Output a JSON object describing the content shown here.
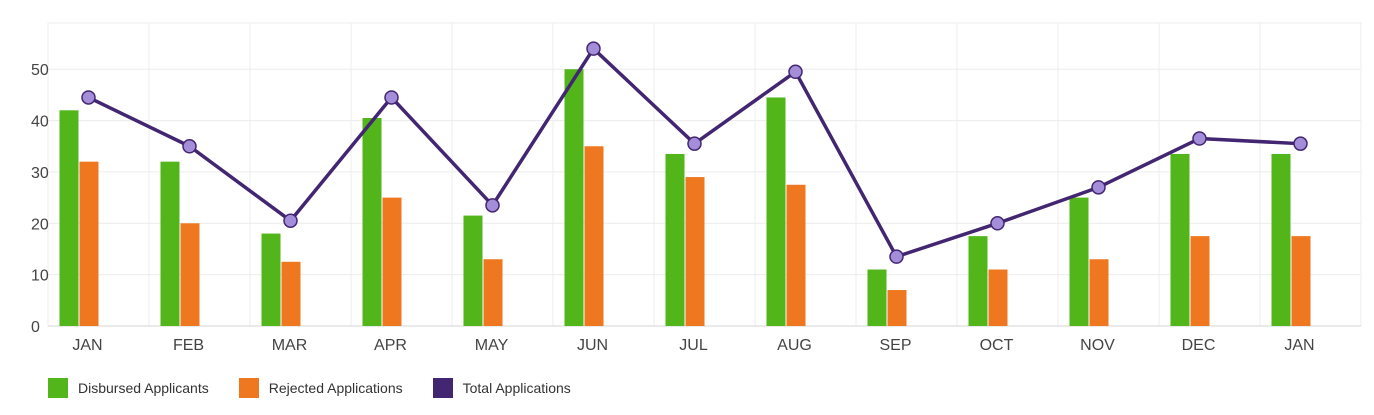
{
  "chart_data": {
    "type": "bar",
    "categories": [
      "JAN",
      "FEB",
      "MAR",
      "APR",
      "MAY",
      "JUN",
      "JUL",
      "AUG",
      "SEP",
      "OCT",
      "NOV",
      "DEC",
      "JAN"
    ],
    "series": [
      {
        "name": "Disbursed Applicants",
        "kind": "bar",
        "color": "#52b51a",
        "values": [
          42,
          32,
          18,
          40.5,
          21.5,
          50,
          33.5,
          44.5,
          11,
          17.5,
          25,
          33.5,
          33.5
        ]
      },
      {
        "name": "Rejected Applications",
        "kind": "bar",
        "color": "#ee7720",
        "values": [
          32,
          20,
          12.5,
          25,
          13,
          35,
          29,
          27.5,
          7,
          11,
          13,
          17.5,
          17.5
        ]
      },
      {
        "name": "Total Applications",
        "kind": "line",
        "color": "#432672",
        "marker_color": "#a58ed9",
        "values": [
          44.5,
          35,
          20.5,
          44.5,
          23.5,
          54,
          35.5,
          49.5,
          13.5,
          20,
          27,
          36.5,
          35.5
        ]
      }
    ],
    "yticks": [
      0,
      10,
      20,
      30,
      40,
      50
    ],
    "ylim": [
      0,
      59
    ],
    "grid": true,
    "legend_position": "bottom-left",
    "title": "",
    "xlabel": "",
    "ylabel": ""
  }
}
